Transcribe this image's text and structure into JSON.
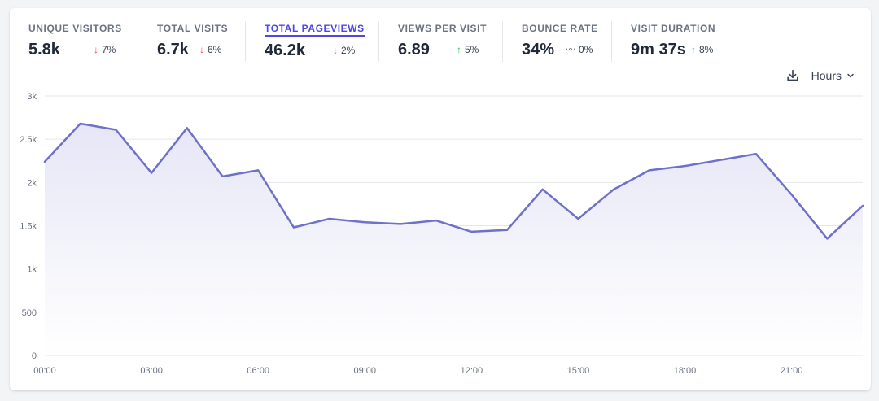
{
  "metrics": [
    {
      "label": "Unique visitors",
      "value": "5.8k",
      "change": "7%",
      "direction": "down"
    },
    {
      "label": "Total visits",
      "value": "6.7k",
      "change": "6%",
      "direction": "down"
    },
    {
      "label": "Total pageviews",
      "value": "46.2k",
      "change": "2%",
      "direction": "down",
      "active": true
    },
    {
      "label": "Views per visit",
      "value": "6.89",
      "change": "5%",
      "direction": "up"
    },
    {
      "label": "Bounce rate",
      "value": "34%",
      "change": "0%",
      "direction": "flat"
    },
    {
      "label": "Visit duration",
      "value": "9m 37s",
      "change": "8%",
      "direction": "up"
    }
  ],
  "toolbar": {
    "interval_label": "Hours",
    "download_icon": "download-icon",
    "chevron_icon": "chevron-down-icon"
  },
  "colors": {
    "line": "#6f71c9",
    "fill_top": "#e6e6f6",
    "grid": "#e5e7eb",
    "down": "#ef4444",
    "up": "#22c55e"
  },
  "chart_data": {
    "type": "area",
    "x": [
      "00:00",
      "01:00",
      "02:00",
      "03:00",
      "04:00",
      "05:00",
      "06:00",
      "07:00",
      "08:00",
      "09:00",
      "10:00",
      "11:00",
      "12:00",
      "13:00",
      "14:00",
      "15:00",
      "16:00",
      "17:00",
      "18:00",
      "19:00",
      "20:00",
      "21:00",
      "22:00",
      "23:00"
    ],
    "x_tick_labels": [
      "00:00",
      "03:00",
      "06:00",
      "09:00",
      "12:00",
      "15:00",
      "18:00",
      "21:00"
    ],
    "series": [
      {
        "values": [
          2240,
          2680,
          2610,
          2110,
          2630,
          2070,
          2140,
          1480,
          1580,
          1540,
          1520,
          1560,
          1430,
          1450,
          1920,
          1580,
          1920,
          2140,
          2190,
          2260,
          2330,
          1860,
          1350,
          1730
        ]
      }
    ],
    "y_ticks": [
      0,
      500,
      1000,
      1500,
      2000,
      2500,
      3000
    ],
    "y_tick_labels": [
      "0",
      "500",
      "1k",
      "1.5k",
      "2k",
      "2.5k",
      "3k"
    ],
    "ylim": [
      0,
      3000
    ],
    "grid": true
  }
}
